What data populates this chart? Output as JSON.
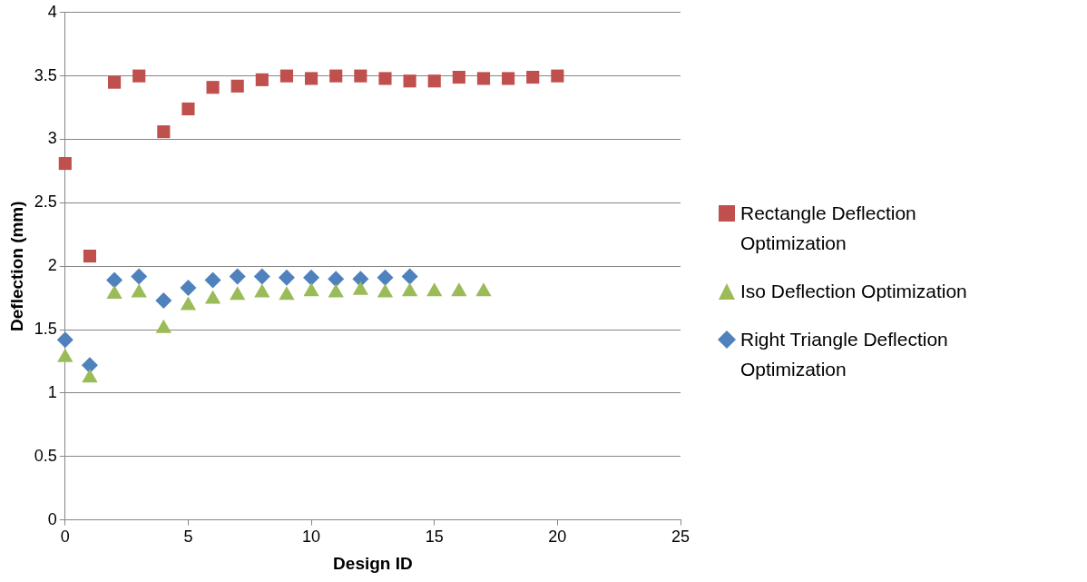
{
  "chart_data": {
    "type": "scatter",
    "xlabel": "Design ID",
    "ylabel": "Deflection (mm)",
    "xlim": [
      0,
      25
    ],
    "xticks": [
      0,
      5,
      10,
      15,
      20,
      25
    ],
    "ylim": [
      0,
      4
    ],
    "yticks": [
      0,
      0.5,
      1,
      1.5,
      2,
      2.5,
      3,
      3.5,
      4
    ],
    "grid": "y",
    "legend": "right",
    "series": [
      {
        "name": "Rectangle Deflection Optimization",
        "color": "#c0504d",
        "marker": "square",
        "x": [
          0,
          1,
          2,
          3,
          4,
          5,
          6,
          7,
          8,
          9,
          10,
          11,
          12,
          13,
          14,
          15,
          16,
          17,
          18,
          19,
          20
        ],
        "values": [
          2.81,
          2.08,
          3.45,
          3.5,
          3.06,
          3.24,
          3.41,
          3.42,
          3.47,
          3.5,
          3.48,
          3.5,
          3.5,
          3.48,
          3.46,
          3.46,
          3.49,
          3.48,
          3.48,
          3.49,
          3.5
        ]
      },
      {
        "name": "Iso Deflection Optimization",
        "color": "#9bbb59",
        "marker": "triangle",
        "x": [
          0,
          1,
          2,
          3,
          4,
          5,
          6,
          7,
          8,
          9,
          10,
          11,
          12,
          13,
          14,
          15,
          16,
          17
        ],
        "values": [
          1.28,
          1.12,
          1.78,
          1.79,
          1.51,
          1.69,
          1.74,
          1.77,
          1.79,
          1.77,
          1.8,
          1.79,
          1.81,
          1.79,
          1.8,
          1.8,
          1.8,
          1.8
        ]
      },
      {
        "name": "Right Triangle Deflection Optimization",
        "color": "#4f81bd",
        "marker": "diamond",
        "x": [
          0,
          1,
          2,
          3,
          4,
          5,
          6,
          7,
          8,
          9,
          10,
          11,
          12,
          13,
          14
        ],
        "values": [
          1.42,
          1.22,
          1.89,
          1.92,
          1.73,
          1.83,
          1.89,
          1.92,
          1.92,
          1.91,
          1.91,
          1.9,
          1.9,
          1.91,
          1.92
        ]
      }
    ]
  }
}
